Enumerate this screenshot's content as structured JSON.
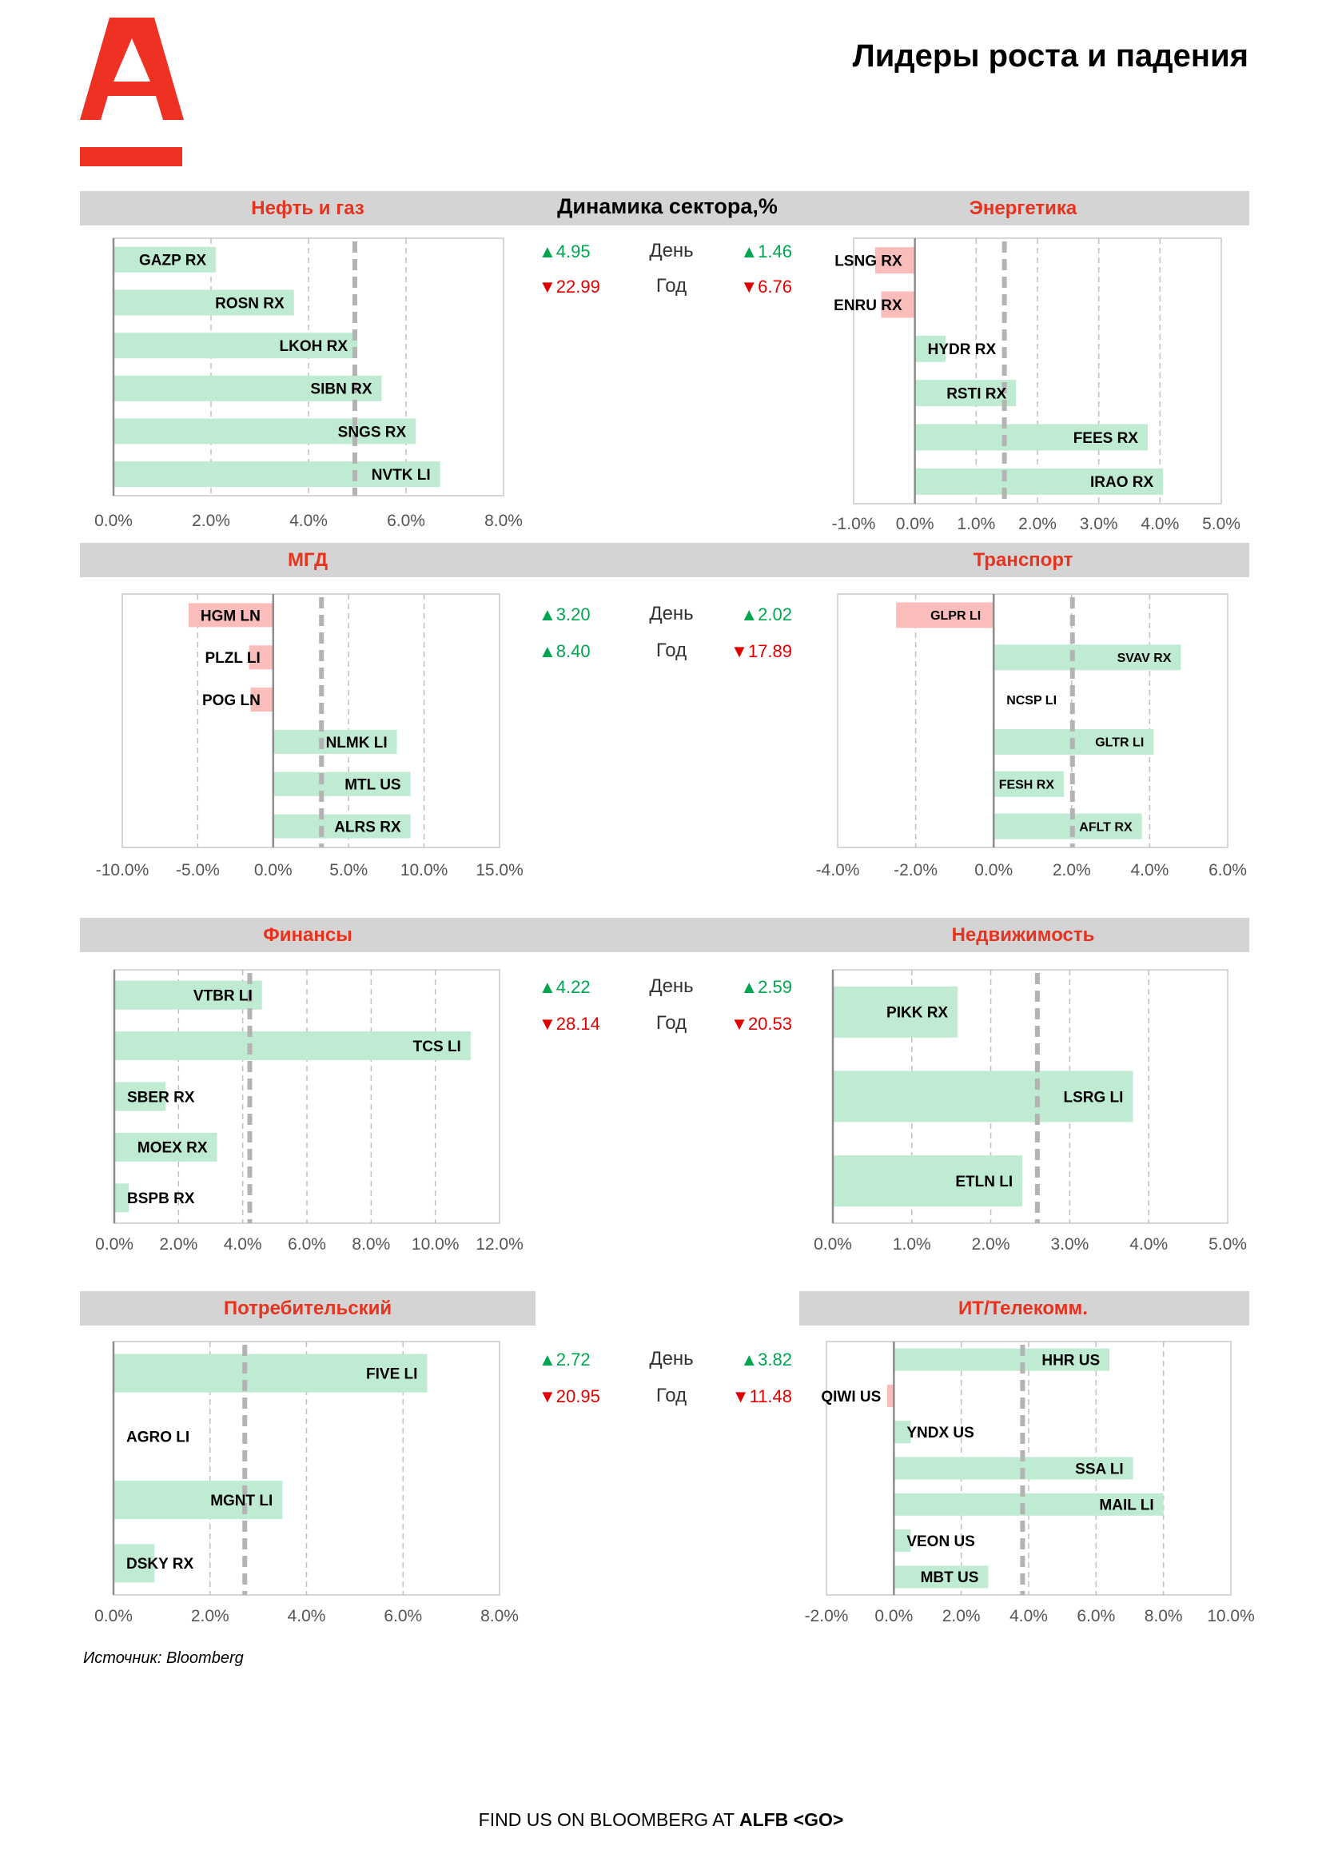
{
  "header": {
    "title": "Лидеры роста и падения",
    "logo_icon": "alfa-bank-logo-icon",
    "brand_color": "#ef3124"
  },
  "dynamics_title": "Динамика сектора,%",
  "stat_labels": {
    "day": "День",
    "year": "Год"
  },
  "rows": [
    {
      "left_title": "Нефть и газ",
      "right_title": "Энергетика",
      "left_day": "▲4.95",
      "left_year": "▼22.99",
      "right_day": "▲1.46",
      "right_year": "▼6.76"
    },
    {
      "left_title": "МГД",
      "right_title": "Транспорт",
      "left_day": "▲3.20",
      "left_year": "▲8.40",
      "right_day": "▲2.02",
      "right_year": "▼17.89"
    },
    {
      "left_title": "Финансы",
      "right_title": "Недвижимость",
      "left_day": "▲4.22",
      "left_year": "▼28.14",
      "right_day": "▲2.59",
      "right_year": "▼20.53"
    },
    {
      "left_title": "Потребительский",
      "right_title": "ИТ/Телекомм.",
      "left_day": "▲2.72",
      "left_year": "▼20.95",
      "right_day": "▲3.82",
      "right_year": "▼11.48"
    }
  ],
  "chart_data": [
    {
      "type": "bar",
      "orientation": "horizontal",
      "title": "Нефть и газ",
      "categories": [
        "GAZP RX",
        "ROSN RX",
        "LKOH RX",
        "SIBN RX",
        "SNGS RX",
        "NVTK LI"
      ],
      "values": [
        2.1,
        3.7,
        5.0,
        5.5,
        6.2,
        6.7
      ],
      "xlim": [
        0,
        8
      ],
      "ticks": [
        0,
        2,
        4,
        6,
        8
      ],
      "tick_labels": [
        "0.0%",
        "2.0%",
        "4.0%",
        "6.0%",
        "8.0%"
      ],
      "sector_avg": 4.95,
      "label_size": 19
    },
    {
      "type": "bar",
      "orientation": "horizontal",
      "title": "Энергетика",
      "categories": [
        "LSNG RX",
        "ENRU RX",
        "HYDR RX",
        "RSTI RX",
        "FEES RX",
        "IRAO RX"
      ],
      "values": [
        -0.65,
        -0.55,
        0.5,
        1.65,
        3.8,
        4.05
      ],
      "xlim": [
        -1,
        5
      ],
      "ticks": [
        -1,
        0,
        1,
        2,
        3,
        4,
        5
      ],
      "tick_labels": [
        "-1.0%",
        "0.0%",
        "1.0%",
        "2.0%",
        "3.0%",
        "4.0%",
        "5.0%"
      ],
      "sector_avg": 1.46,
      "label_size": 19
    },
    {
      "type": "bar",
      "orientation": "horizontal",
      "title": "МГД",
      "categories": [
        "HGM LN",
        "PLZL LI",
        "POG LN",
        "NLMK LI",
        "MTL US",
        "ALRS RX"
      ],
      "values": [
        -5.6,
        -1.6,
        -1.5,
        8.2,
        9.1,
        9.1
      ],
      "xlim": [
        -10,
        15
      ],
      "ticks": [
        -10,
        -5,
        0,
        5,
        10,
        15
      ],
      "tick_labels": [
        "-10.0%",
        "-5.0%",
        "0.0%",
        "5.0%",
        "10.0%",
        "15.0%"
      ],
      "sector_avg": 3.2,
      "label_size": 19
    },
    {
      "type": "bar",
      "orientation": "horizontal",
      "title": "Транспорт",
      "categories": [
        "GLPR LI",
        "SVAV RX",
        "NCSP LI",
        "GLTR LI",
        "FESH RX",
        "AFLT RX"
      ],
      "values": [
        -2.5,
        4.8,
        0,
        4.1,
        1.8,
        3.8
      ],
      "xlim": [
        -4,
        6
      ],
      "ticks": [
        -4,
        -2,
        0,
        2,
        4,
        6
      ],
      "tick_labels": [
        "-4.0%",
        "-2.0%",
        "0.0%",
        "2.0%",
        "4.0%",
        "6.0%"
      ],
      "sector_avg": 2.02,
      "label_size": 16
    },
    {
      "type": "bar",
      "orientation": "horizontal",
      "title": "Финансы",
      "categories": [
        "VTBR LI",
        "TCS LI",
        "SBER RX",
        "MOEX RX",
        "BSPB RX"
      ],
      "values": [
        4.6,
        11.1,
        1.6,
        3.2,
        0.45
      ],
      "xlim": [
        0,
        12
      ],
      "ticks": [
        0,
        2,
        4,
        6,
        8,
        10,
        12
      ],
      "tick_labels": [
        "0.0%",
        "2.0%",
        "4.0%",
        "6.0%",
        "8.0%",
        "10.0%",
        "12.0%"
      ],
      "sector_avg": 4.22,
      "label_size": 19
    },
    {
      "type": "bar",
      "orientation": "horizontal",
      "title": "Недвижимость",
      "categories": [
        "PIKK RX",
        "LSRG LI",
        "ETLN LI"
      ],
      "values": [
        1.58,
        3.8,
        2.4
      ],
      "xlim": [
        0,
        5
      ],
      "ticks": [
        0,
        1,
        2,
        3,
        4,
        5
      ],
      "tick_labels": [
        "0.0%",
        "1.0%",
        "2.0%",
        "3.0%",
        "4.0%",
        "5.0%"
      ],
      "sector_avg": 2.59,
      "label_size": 19
    },
    {
      "type": "bar",
      "orientation": "horizontal",
      "title": "Потребительский",
      "categories": [
        "FIVE LI",
        "AGRO LI",
        "MGNT LI",
        "DSKY RX"
      ],
      "values": [
        6.5,
        0,
        3.5,
        0.85
      ],
      "xlim": [
        0,
        8
      ],
      "ticks": [
        0,
        2,
        4,
        6,
        8
      ],
      "tick_labels": [
        "0.0%",
        "2.0%",
        "4.0%",
        "6.0%",
        "8.0%"
      ],
      "sector_avg": 2.72,
      "label_size": 19
    },
    {
      "type": "bar",
      "orientation": "horizontal",
      "title": "ИТ/Телекомм.",
      "categories": [
        "HHR US",
        "QIWI US",
        "YNDX US",
        "SSA LI",
        "MAIL LI",
        "VEON US",
        "MBT US"
      ],
      "values": [
        6.4,
        -0.2,
        0.5,
        7.1,
        8.0,
        0.5,
        2.8
      ],
      "xlim": [
        -2,
        10
      ],
      "ticks": [
        -2,
        0,
        2,
        4,
        6,
        8,
        10
      ],
      "tick_labels": [
        "-2.0%",
        "0.0%",
        "2.0%",
        "4.0%",
        "6.0%",
        "8.0%",
        "10.0%"
      ],
      "sector_avg": 3.82,
      "label_size": 19
    }
  ],
  "colors": {
    "positive_bar": "#bfebd3",
    "negative_bar": "#fbbcbc",
    "avg_line": "#b3b3b3",
    "grid": "#c0c0c0",
    "up": "#00a550",
    "down": "#e00000",
    "section_title": "#e8321e"
  },
  "source": "Источник: Bloomberg",
  "footer": {
    "prefix": "FIND US ON BLOOMBERG AT ",
    "code": "ALFB <GO>"
  }
}
